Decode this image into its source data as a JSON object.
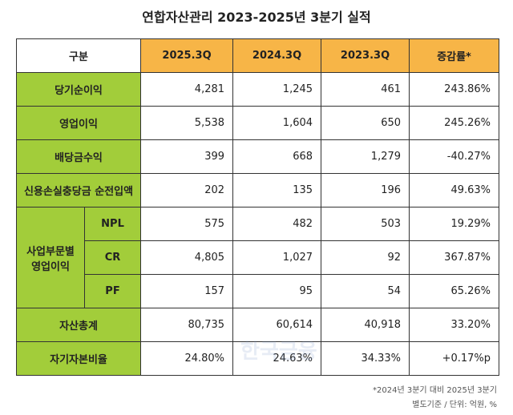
{
  "title": "연합자산관리 2023-2025년 3분기 실적",
  "table": {
    "header": [
      "구분",
      "2025.3Q",
      "2024.3Q",
      "2023.3Q",
      "증감률*"
    ],
    "rows": [
      {
        "label": "당기순이익",
        "values": [
          "4,281",
          "1,245",
          "461",
          "243.86%"
        ]
      },
      {
        "label": "영업이익",
        "values": [
          "5,538",
          "1,604",
          "650",
          "245.26%"
        ]
      },
      {
        "label": "배당금수익",
        "values": [
          "399",
          "668",
          "1,279",
          "-40.27%"
        ]
      },
      {
        "label": "신용손실충당금 순전입액",
        "values": [
          "202",
          "135",
          "196",
          "49.63%"
        ]
      },
      {
        "group": "사업부문별 영업이익",
        "label": "NPL",
        "values": [
          "575",
          "482",
          "503",
          "19.29%"
        ]
      },
      {
        "label": "CR",
        "values": [
          "4,805",
          "1,027",
          "92",
          "367.87%"
        ]
      },
      {
        "label": "PF",
        "values": [
          "157",
          "95",
          "54",
          "65.26%"
        ]
      },
      {
        "label": "자산총계",
        "values": [
          "80,735",
          "60,614",
          "40,918",
          "33.20%"
        ]
      },
      {
        "label": "자기자본비율",
        "values": [
          "24.80%",
          "24.63%",
          "34.33%",
          "+0.17%p"
        ]
      }
    ]
  },
  "watermark": "한국금융",
  "footnotes": [
    "*2024년 3분기 대비 2025년 3분기",
    "별도기준 / 단위: 억원, %"
  ]
}
